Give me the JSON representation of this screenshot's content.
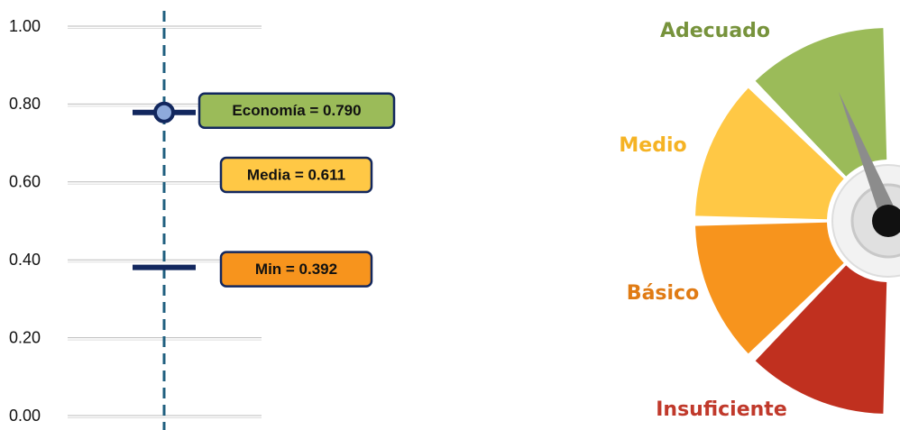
{
  "chart_data": [
    {
      "type": "dot",
      "values": [
        0.79,
        0.611,
        0.392
      ],
      "value_labels": [
        "Economía = 0.790",
        "Media = 0.611",
        "Min = 0.392"
      ],
      "colors": [
        "#9bbb59",
        "#ffc845",
        "#f7941d"
      ],
      "markers": [
        "circle-bar",
        "none",
        "bar"
      ],
      "ylim": [
        0,
        1
      ],
      "yticks": [
        {
          "value": 0,
          "label": "0.00"
        },
        {
          "value": 0.2,
          "label": "0.20"
        },
        {
          "value": 0.4,
          "label": "0.40"
        },
        {
          "value": 0.6,
          "label": "0.60"
        },
        {
          "value": 0.8,
          "label": "0.80"
        },
        {
          "value": 1,
          "label": "1.00"
        }
      ],
      "grid": true
    },
    {
      "type": "gauge",
      "categories": [
        "Adecuado",
        "Medio",
        "Básico",
        "Insuficiente"
      ],
      "colors": [
        "#9bbb59",
        "#ffc845",
        "#f7941d",
        "#c0301f"
      ],
      "label_colors": [
        "#77933c",
        "#f5b324",
        "#e07b14",
        "#c0392b"
      ]
    }
  ]
}
